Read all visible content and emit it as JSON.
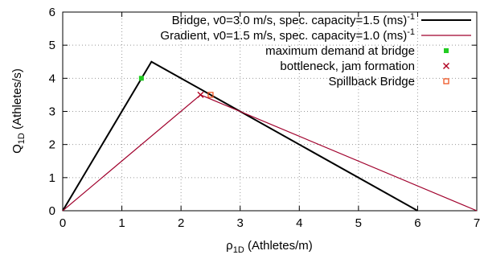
{
  "chart_data": {
    "type": "line",
    "xlabel": {
      "main": "ρ",
      "sub": "1D",
      "rest": " (Athletes/m)"
    },
    "ylabel": {
      "main": "Q",
      "sub": "1D",
      "rest": " (Athletes/s)"
    },
    "xlim": [
      0,
      7
    ],
    "ylim": [
      0,
      6
    ],
    "x_ticks": [
      0,
      1,
      2,
      3,
      4,
      5,
      6,
      7
    ],
    "y_ticks": [
      0,
      1,
      2,
      3,
      4,
      5,
      6
    ],
    "grid": "dotted",
    "legend_position": "top-right",
    "series": [
      {
        "kind": "line",
        "legend": {
          "text": "Bridge, v0=3.0 m/s, spec. capacity=1.5 (ms)",
          "sup": "-1"
        },
        "color": "#000000",
        "x": [
          0,
          1.5,
          6
        ],
        "y": [
          0,
          4.5,
          0
        ]
      },
      {
        "kind": "line",
        "legend": {
          "text": "Gradient, v0=1.5 m/s, spec. capacity=1.0 (ms)",
          "sup": "-1"
        },
        "color": "#a0002c",
        "x": [
          0,
          2.33,
          7
        ],
        "y": [
          0,
          3.5,
          0
        ]
      },
      {
        "kind": "marker",
        "marker": "filled-square",
        "legend": {
          "text": "maximum demand at bridge",
          "sup": ""
        },
        "color": "#22cc22",
        "x": [
          1.33
        ],
        "y": [
          4.0
        ]
      },
      {
        "kind": "marker",
        "marker": "x",
        "legend": {
          "text": "bottleneck, jam formation",
          "sup": ""
        },
        "color": "#b00020",
        "x": [
          2.33
        ],
        "y": [
          3.5
        ]
      },
      {
        "kind": "marker",
        "marker": "open-square",
        "legend": {
          "text": "Spillback Bridge",
          "sup": ""
        },
        "color": "#ee5522",
        "x": [
          2.5
        ],
        "y": [
          3.5
        ]
      }
    ]
  }
}
